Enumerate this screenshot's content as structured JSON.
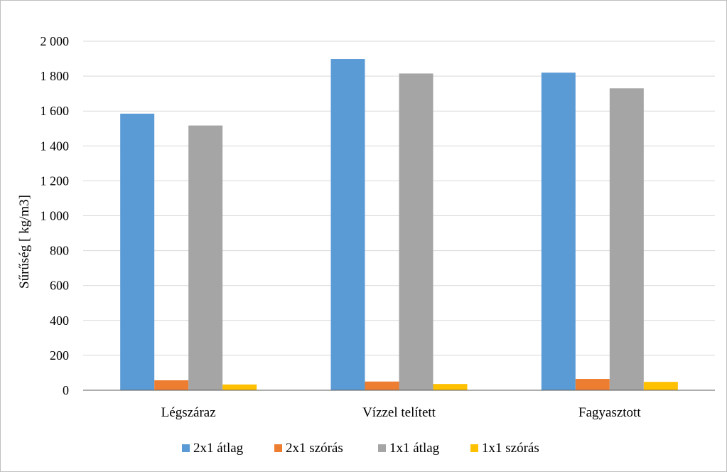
{
  "chart_data": {
    "type": "bar",
    "title": "",
    "xlabel": "",
    "ylabel": "Sűrűség [ kg/m3]",
    "ylim": [
      0,
      2000
    ],
    "y_ticks": [
      0,
      200,
      400,
      600,
      800,
      1000,
      1200,
      1400,
      1600,
      1800,
      2000
    ],
    "y_tick_labels": [
      "0",
      "200",
      "400",
      "600",
      "800",
      "1 000",
      "1 200",
      "1 400",
      "1 600",
      "1 800",
      "2 000"
    ],
    "grid": true,
    "legend_position": "bottom",
    "categories": [
      "Légszáraz",
      "Vízzel telített",
      "Fagyasztott"
    ],
    "series": [
      {
        "name": "2x1 átlag",
        "color": "#5b9bd5",
        "values": [
          1585,
          1898,
          1820
        ]
      },
      {
        "name": "2x1 szórás",
        "color": "#ed7d31",
        "values": [
          57,
          50,
          65
        ]
      },
      {
        "name": "1x1 átlag",
        "color": "#a5a5a5",
        "values": [
          1517,
          1815,
          1730
        ]
      },
      {
        "name": "1x1 szórás",
        "color": "#ffc000",
        "values": [
          33,
          36,
          48
        ]
      }
    ]
  }
}
